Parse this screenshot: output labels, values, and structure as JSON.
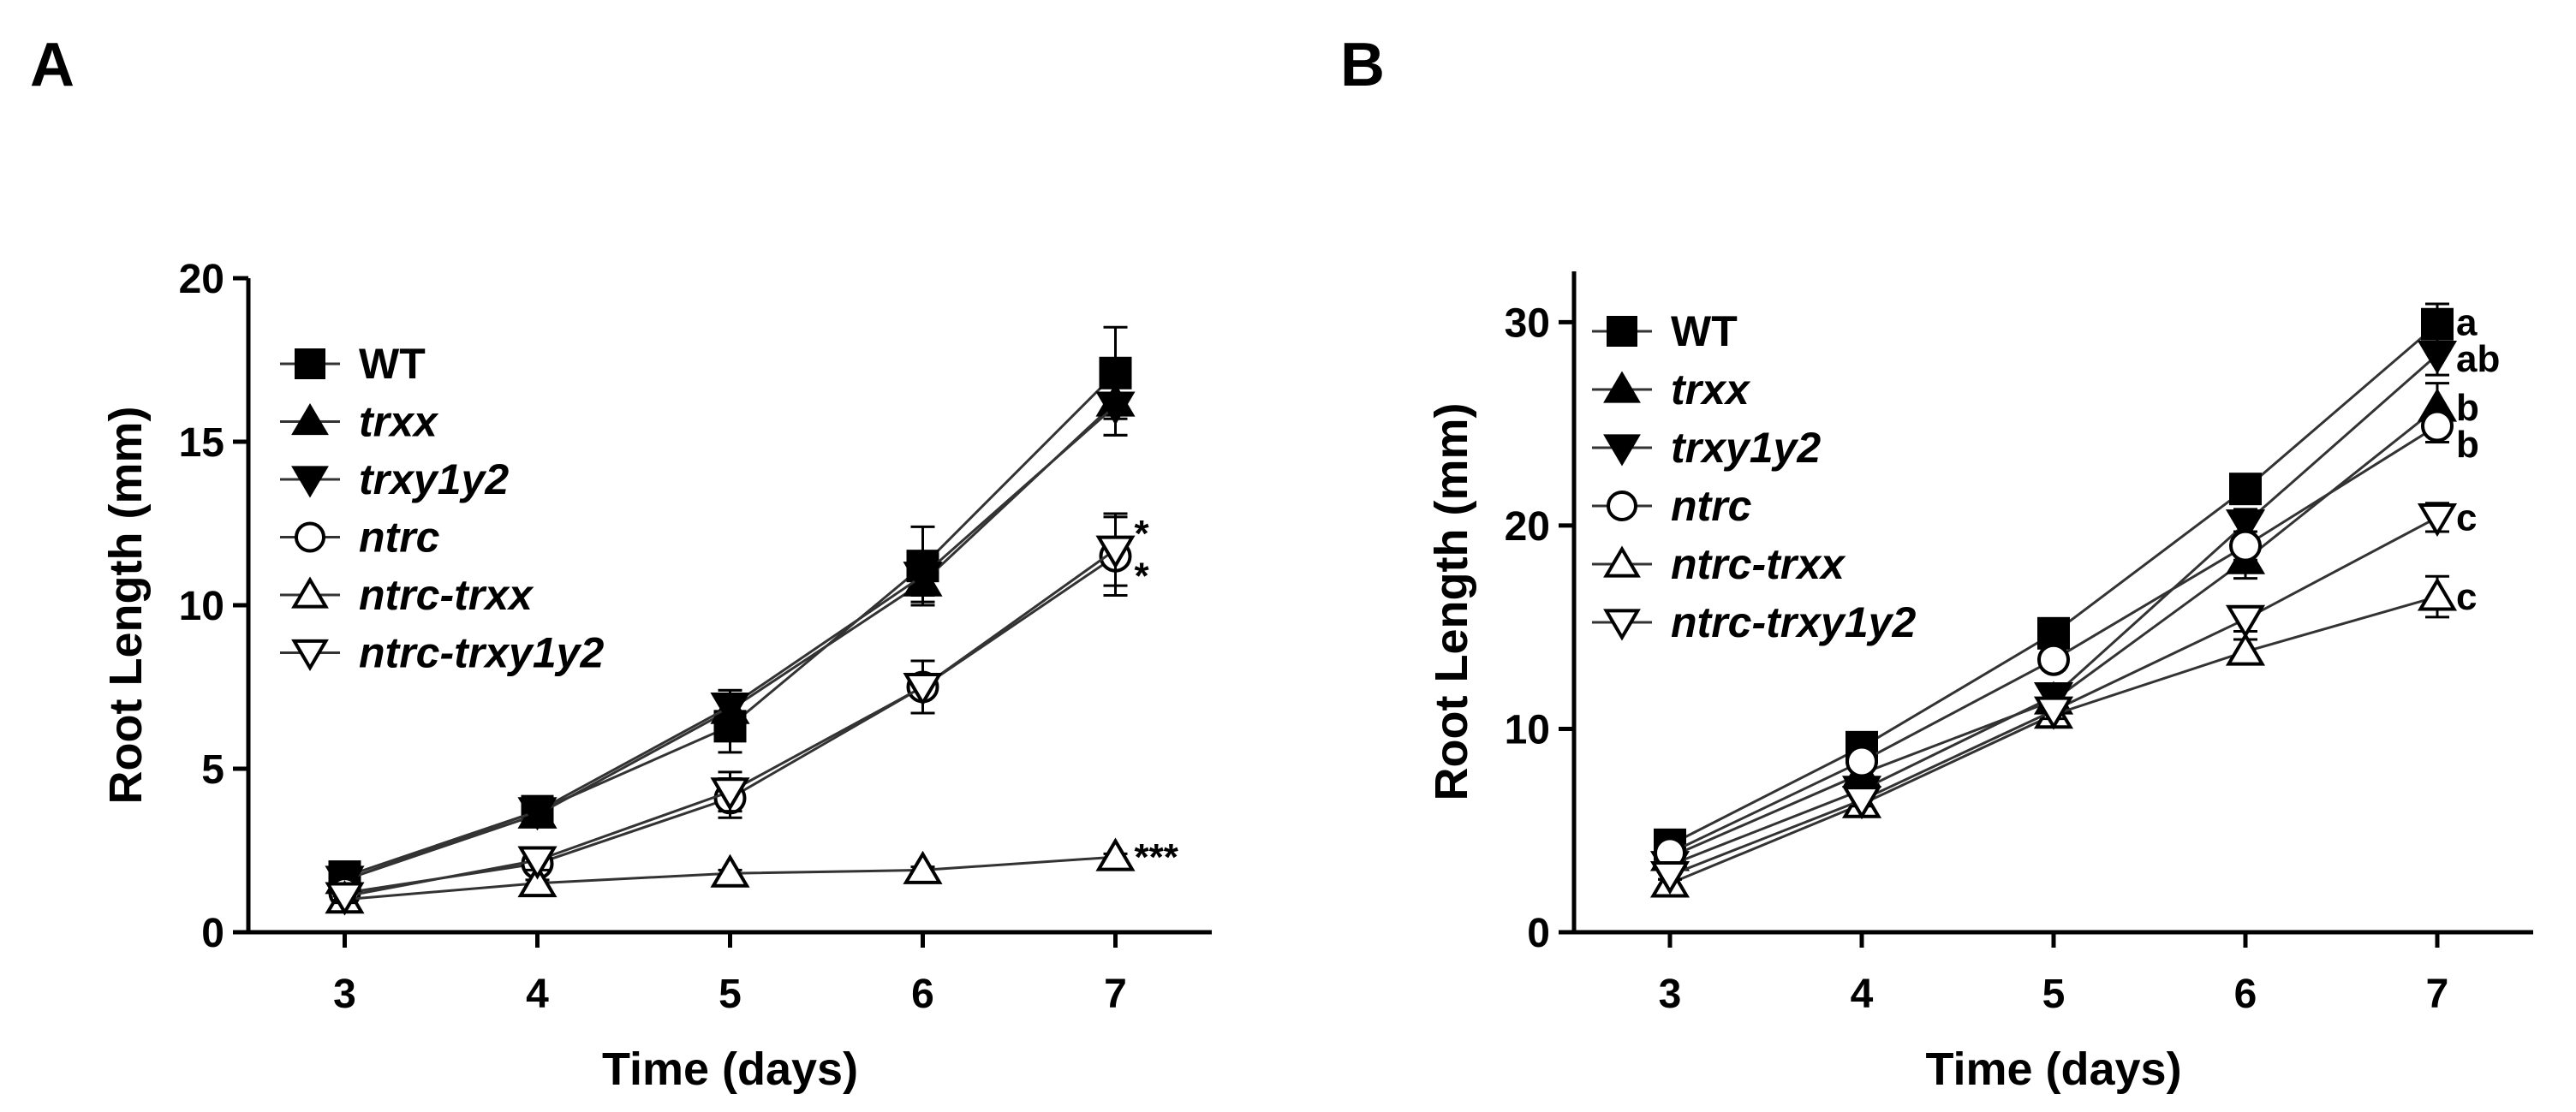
{
  "chart_data": [
    {
      "panel": "A",
      "type": "line",
      "xlabel": "Time (days)",
      "ylabel": "Root Length (mm)",
      "x": [
        3,
        4,
        5,
        6,
        7
      ],
      "xticks": [
        "3",
        "4",
        "5",
        "6",
        "7"
      ],
      "ylim": [
        0,
        20
      ],
      "yticks": [
        "0",
        "5",
        "10",
        "15",
        "20"
      ],
      "legend_position": "top-left",
      "series": [
        {
          "name": "WT",
          "marker": "square-filled",
          "values": [
            1.7,
            3.7,
            6.3,
            11.2,
            17.1
          ],
          "err": [
            0.2,
            0.3,
            0.8,
            1.2,
            1.4
          ]
        },
        {
          "name": "trxx",
          "marker": "triangle-up-filled",
          "values": [
            1.6,
            3.6,
            6.8,
            10.7,
            16.2
          ],
          "err": [
            0.2,
            0.3,
            0.6,
            0.6,
            1.0
          ]
        },
        {
          "name": "trxy1y2",
          "marker": "triangle-down-filled",
          "values": [
            1.6,
            3.7,
            6.9,
            10.9,
            16.1
          ],
          "err": [
            0.2,
            0.3,
            0.5,
            0.6,
            0.9
          ]
        },
        {
          "name": "ntrc",
          "marker": "circle-open",
          "values": [
            1.2,
            2.1,
            4.1,
            7.5,
            11.5
          ],
          "err": [
            0.2,
            0.3,
            0.6,
            0.8,
            1.2
          ]
        },
        {
          "name": "ntrc-trxx",
          "marker": "triangle-up-open",
          "values": [
            1.0,
            1.5,
            1.8,
            1.9,
            2.3
          ],
          "err": [
            0.1,
            0.1,
            0.1,
            0.1,
            0.1
          ]
        },
        {
          "name": "ntrc-trxy1y2",
          "marker": "triangle-down-open",
          "values": [
            1.1,
            2.2,
            4.3,
            7.5,
            11.7
          ],
          "err": [
            0.2,
            0.3,
            0.6,
            0.8,
            1.1
          ]
        }
      ],
      "annotations": [
        {
          "text": "*",
          "x": 7,
          "y": 12.2
        },
        {
          "text": "*",
          "x": 7,
          "y": 10.9
        },
        {
          "text": "***",
          "x": 7,
          "y": 2.3
        }
      ]
    },
    {
      "panel": "B",
      "type": "line",
      "xlabel": "Time (days)",
      "ylabel": "Root Length (mm)",
      "x": [
        3,
        4,
        5,
        6,
        7
      ],
      "xticks": [
        "3",
        "4",
        "5",
        "6",
        "7"
      ],
      "ylim": [
        0,
        32.5
      ],
      "yticks": [
        "0",
        "10",
        "20",
        "30"
      ],
      "legend_position": "top-left",
      "series": [
        {
          "name": "WT",
          "marker": "square-filled",
          "values": [
            4.3,
            9.1,
            14.7,
            21.8,
            29.9
          ],
          "err": [
            0.3,
            0.4,
            0.5,
            0.6,
            1.0
          ]
        },
        {
          "name": "trxx",
          "marker": "triangle-up-filled",
          "values": [
            3.7,
            7.8,
            11.4,
            18.3,
            25.8
          ],
          "err": [
            0.3,
            0.4,
            0.6,
            0.9,
            1.2
          ]
        },
        {
          "name": "trxy1y2",
          "marker": "triangle-down-filled",
          "values": [
            3.3,
            7.0,
            11.6,
            20.1,
            28.4
          ],
          "err": [
            0.3,
            0.4,
            0.5,
            0.7,
            1.0
          ]
        },
        {
          "name": "ntrc",
          "marker": "circle-open",
          "values": [
            3.9,
            8.4,
            13.4,
            19.0,
            24.9
          ],
          "err": [
            0.3,
            0.4,
            0.5,
            0.7,
            0.8
          ]
        },
        {
          "name": "ntrc-trxx",
          "marker": "triangle-up-open",
          "values": [
            2.4,
            6.3,
            10.7,
            13.8,
            16.5
          ],
          "err": [
            0.2,
            0.3,
            0.4,
            0.6,
            1.0
          ]
        },
        {
          "name": "ntrc-trxy1y2",
          "marker": "triangle-down-open",
          "values": [
            2.8,
            6.5,
            10.9,
            15.4,
            20.4
          ],
          "err": [
            0.2,
            0.3,
            0.4,
            0.6,
            0.7
          ]
        }
      ],
      "annotations": [
        {
          "text": "a",
          "x": 7,
          "y": 30.0
        },
        {
          "text": "ab",
          "x": 7,
          "y": 28.2
        },
        {
          "text": "b",
          "x": 7,
          "y": 25.8
        },
        {
          "text": "b",
          "x": 7,
          "y": 24.0
        },
        {
          "text": "c",
          "x": 7,
          "y": 20.4
        },
        {
          "text": "c",
          "x": 7,
          "y": 16.5
        }
      ]
    }
  ]
}
